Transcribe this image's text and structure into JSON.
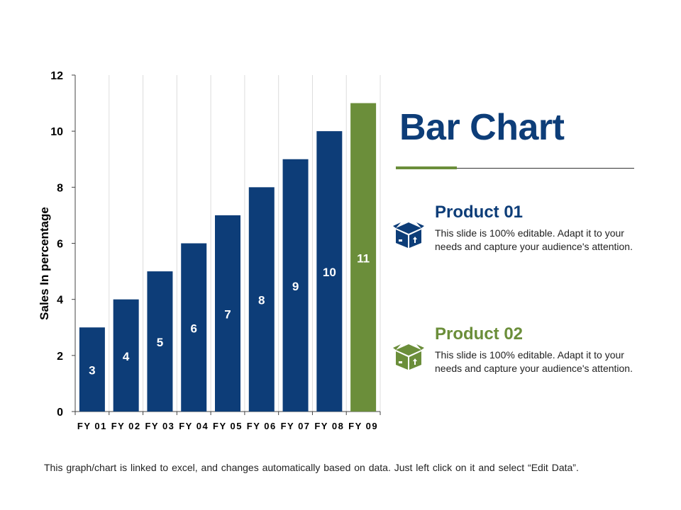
{
  "chart_data": {
    "type": "bar",
    "categories": [
      "FY 01",
      "FY 02",
      "FY 03",
      "FY 04",
      "FY 05",
      "FY 06",
      "FY 07",
      "FY 08",
      "FY 09"
    ],
    "values": [
      3,
      4,
      5,
      6,
      7,
      8,
      9,
      10,
      11
    ],
    "title": "Bar Chart",
    "xlabel": "",
    "ylabel": "Sales In percentage",
    "ylim": [
      0,
      12
    ],
    "yticks": [
      "0",
      "2",
      "4",
      "6",
      "8",
      "10",
      "12"
    ],
    "grid": "vertical",
    "colors": {
      "primary": "#0d3d78",
      "highlight": "#6b8e3a"
    },
    "highlight_category": "FY 09"
  },
  "title_accent_color": "#6b8e3a",
  "products": [
    {
      "title": "Product 01",
      "description": "This slide is 100% editable. Adapt it to your needs and capture your audience's attention.",
      "icon": "open-box-icon",
      "color": "#0d3d78"
    },
    {
      "title": "Product 02",
      "description": "This slide is 100% editable. Adapt it to your needs and capture your audience's attention.",
      "icon": "open-box-icon",
      "color": "#6b8e3a"
    }
  ],
  "footnote": "This graph/chart is linked to excel, and changes automatically based on data. Just left click on it and select “Edit Data”."
}
